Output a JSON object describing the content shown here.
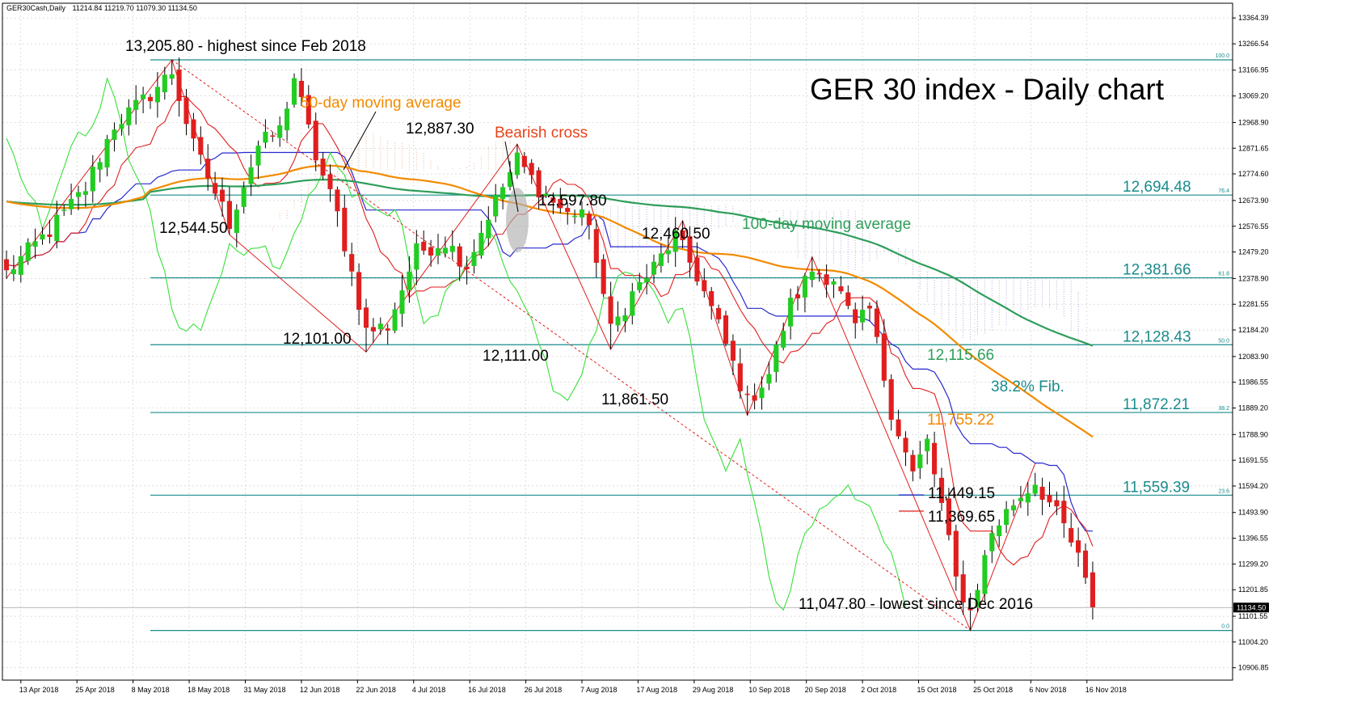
{
  "header": {
    "symbol": "GER30Cash,Daily",
    "ohlc": "11214.84 11219.70 11079.30 11134.50",
    "title": "GER 30 index - Daily chart"
  },
  "chart_data": {
    "type": "candlestick",
    "title": "GER 30 index - Daily chart",
    "ylim": [
      10860,
      13420
    ],
    "price_axis_labels": [
      "13364.39",
      "13266.54",
      "13166.95",
      "13069.20",
      "12968.90",
      "12871.65",
      "12774.60",
      "12673.90",
      "12576.55",
      "12479.20",
      "12378.90",
      "12281.55",
      "12184.20",
      "12083.90",
      "11986.55",
      "11889.20",
      "11788.90",
      "11691.55",
      "11594.20",
      "11493.90",
      "11396.55",
      "11299.20",
      "11201.85",
      "11101.55",
      "11004.20",
      "10906.85"
    ],
    "date_labels": [
      "13 Apr 2018",
      "25 Apr 2018",
      "8 May 2018",
      "18 May 2018",
      "31 May 2018",
      "12 Jun 2018",
      "22 Jun 2018",
      "4 Jul 2018",
      "16 Jul 2018",
      "26 Jul 2018",
      "7 Aug 2018",
      "17 Aug 2018",
      "29 Aug 2018",
      "10 Sep 2018",
      "20 Sep 2018",
      "2 Oct 2018",
      "15 Oct 2018",
      "25 Oct 2018",
      "6 Nov 2018",
      "16 Nov 2018"
    ],
    "last_price": "11134.50",
    "fibonacci": [
      {
        "ratio": "100.0",
        "price": null,
        "label": ""
      },
      {
        "ratio": "76.4",
        "price": 12694.48,
        "label": "12,694.48"
      },
      {
        "ratio": "61.8",
        "price": 12381.66,
        "label": "12,381.66"
      },
      {
        "ratio": "50.0",
        "price": 12128.43,
        "label": "12,128.43"
      },
      {
        "ratio": "38.2",
        "price": 11872.21,
        "label": "11,872.21"
      },
      {
        "ratio": "23.6",
        "price": 11559.39,
        "label": "11,559.39"
      },
      {
        "ratio": "0.0",
        "price": null,
        "label": ""
      }
    ],
    "swing_points": [
      {
        "label": "13,205.80 - highest since Feb 2018",
        "price": 13205.8,
        "bar": 23
      },
      {
        "label": "12,544.50",
        "price": 12544.5,
        "bar": 31
      },
      {
        "label": "12,101.00",
        "price": 12101.0,
        "bar": 50
      },
      {
        "label": "12,887.30",
        "price": 12887.3,
        "bar": 71
      },
      {
        "label": "12,111.00",
        "price": 12111.0,
        "bar": 84
      },
      {
        "label": "12,597.80",
        "price": 12597.8,
        "bar": 94
      },
      {
        "label": "11,861.50",
        "price": 11861.5,
        "bar": 103
      },
      {
        "label": "12,460.50",
        "price": 12460.5,
        "bar": 112
      },
      {
        "label": "11,047.80 - lowest since Dec 2016",
        "price": 11047.8,
        "bar": 134
      }
    ],
    "indicator_labels": [
      {
        "text": "50-day moving average",
        "color": "#f28a00"
      },
      {
        "text": "100-day moving average",
        "color": "#2e9e5a"
      },
      {
        "text": "Bearish cross",
        "color": "#e8431a"
      },
      {
        "text": "38.2% Fib.",
        "color": "#1a8c8c"
      },
      {
        "text": "12,115.66",
        "color": "#2e9e5a"
      },
      {
        "text": "11,755.22",
        "color": "#f28a00"
      },
      {
        "text": "11,449.15",
        "color": "#000000"
      },
      {
        "text": "11,369.65",
        "color": "#000000"
      }
    ],
    "colors": {
      "bull": "#22cc22",
      "bear": "#e01e1e",
      "ma50": "#f28a00",
      "ma100": "#2e9e5a",
      "kijun": "#2828d0",
      "tenkan": "#e01e1e",
      "chikou": "#38e038",
      "fib": "#1a8c8c"
    },
    "anchors": [
      [
        0,
        12400
      ],
      [
        6,
        12560
      ],
      [
        11,
        12720
      ],
      [
        15,
        12960
      ],
      [
        19,
        13050
      ],
      [
        23,
        13160
      ],
      [
        26,
        12880
      ],
      [
        31,
        12590
      ],
      [
        35,
        12880
      ],
      [
        38,
        12940
      ],
      [
        40,
        13140
      ],
      [
        43,
        12840
      ],
      [
        46,
        12620
      ],
      [
        50,
        12180
      ],
      [
        53,
        12200
      ],
      [
        57,
        12480
      ],
      [
        61,
        12520
      ],
      [
        64,
        12430
      ],
      [
        67,
        12620
      ],
      [
        71,
        12830
      ],
      [
        74,
        12720
      ],
      [
        78,
        12620
      ],
      [
        80,
        12640
      ],
      [
        82,
        12460
      ],
      [
        84,
        12180
      ],
      [
        87,
        12320
      ],
      [
        90,
        12420
      ],
      [
        93,
        12540
      ],
      [
        96,
        12390
      ],
      [
        99,
        12200
      ],
      [
        103,
        11910
      ],
      [
        106,
        12020
      ],
      [
        109,
        12280
      ],
      [
        112,
        12410
      ],
      [
        115,
        12380
      ],
      [
        118,
        12190
      ],
      [
        120,
        12260
      ],
      [
        123,
        11880
      ],
      [
        126,
        11640
      ],
      [
        128,
        11760
      ],
      [
        130,
        11520
      ],
      [
        132,
        11240
      ],
      [
        134,
        11120
      ],
      [
        137,
        11420
      ],
      [
        140,
        11530
      ],
      [
        143,
        11610
      ],
      [
        145,
        11530
      ],
      [
        147,
        11440
      ],
      [
        149,
        11320
      ],
      [
        151,
        11134
      ]
    ]
  }
}
